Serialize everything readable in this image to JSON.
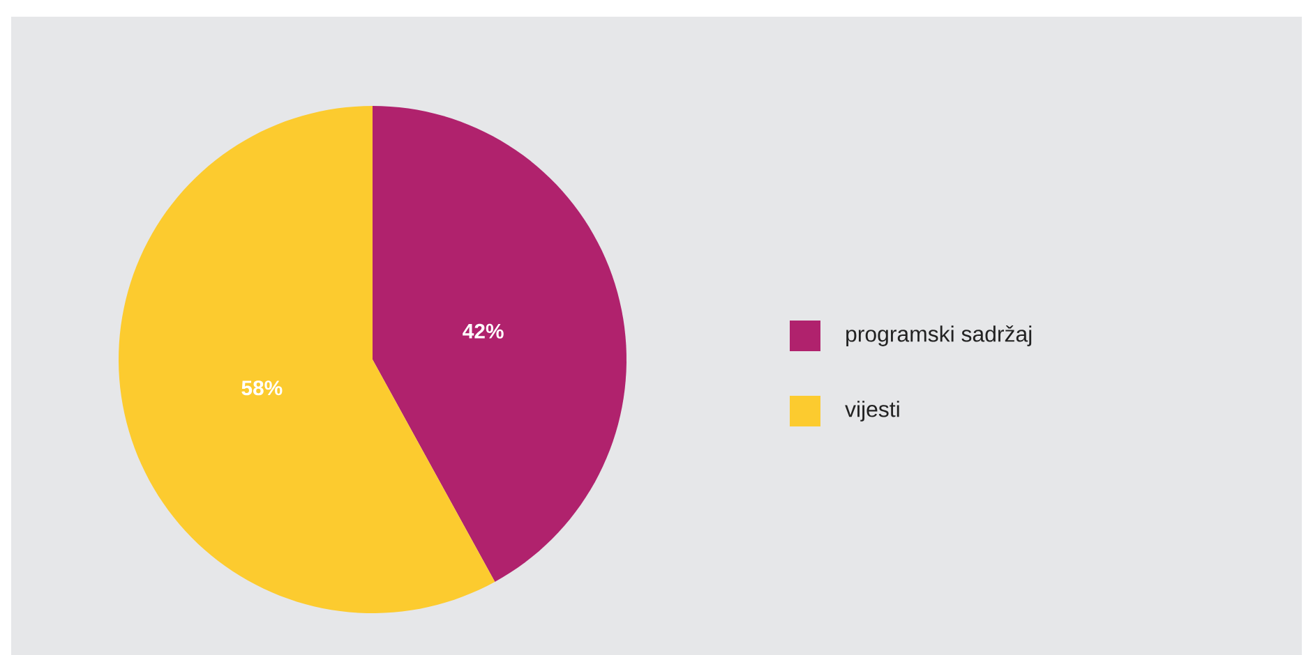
{
  "chart_data": {
    "type": "pie",
    "categories": [
      "programski sadržaj",
      "vijesti"
    ],
    "values": [
      42,
      58
    ],
    "colors": [
      "#b0226d",
      "#fccb2f"
    ],
    "value_labels": [
      "42%",
      "58%"
    ],
    "legend": "right"
  }
}
